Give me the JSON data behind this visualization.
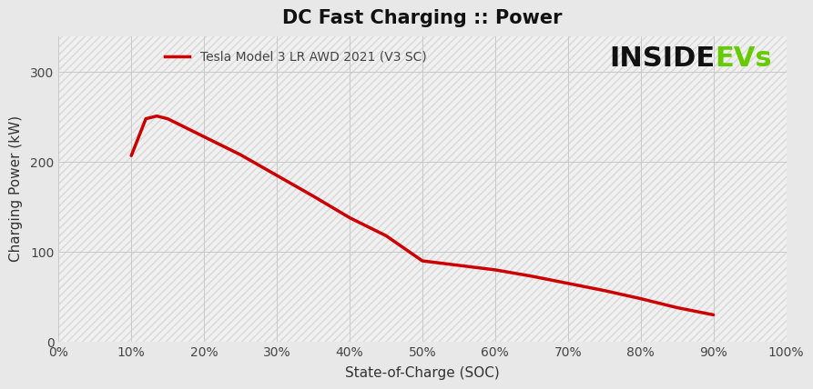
{
  "title": "DC Fast Charging :: Power",
  "xlabel": "State-of-Charge (SOC)",
  "ylabel": "Charging Power (kW)",
  "legend_label": "Tesla Model 3 LR AWD 2021 (V3 SC)",
  "line_color": "#cc0000",
  "line_width": 2.5,
  "background_color": "#e8e8e8",
  "plot_bg_color": "#f0f0f0",
  "grid_color": "#c8c8c8",
  "hatch_color": "#d8d8d8",
  "xlim": [
    0,
    1.0
  ],
  "ylim": [
    0,
    340
  ],
  "xticks": [
    0,
    0.1,
    0.2,
    0.3,
    0.4,
    0.5,
    0.6,
    0.7,
    0.8,
    0.9,
    1.0
  ],
  "yticks": [
    0,
    100,
    200,
    300
  ],
  "x_data": [
    0.1,
    0.12,
    0.135,
    0.15,
    0.2,
    0.25,
    0.3,
    0.35,
    0.4,
    0.45,
    0.5,
    0.55,
    0.6,
    0.65,
    0.7,
    0.75,
    0.8,
    0.85,
    0.9
  ],
  "y_data": [
    207,
    248,
    251,
    248,
    228,
    208,
    185,
    162,
    138,
    118,
    90,
    85,
    80,
    73,
    65,
    57,
    48,
    38,
    30
  ],
  "watermark_text_inside": "INSIDE",
  "watermark_text_evs": "EVs",
  "watermark_text_s": "s",
  "watermark_color_inside": "#111111",
  "watermark_color_evs": "#66cc00",
  "watermark_color_s": "#111111",
  "title_fontsize": 15,
  "axis_label_fontsize": 11,
  "tick_fontsize": 10,
  "legend_fontsize": 10,
  "watermark_fontsize": 22
}
